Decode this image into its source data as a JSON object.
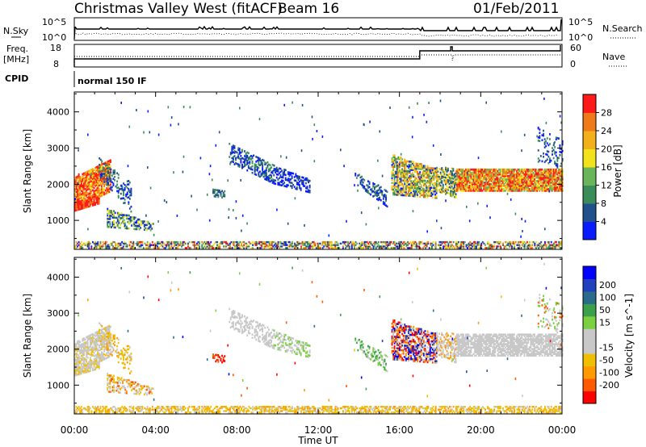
{
  "header": {
    "title": "Christmas Valley West (fitACF)",
    "beam": "Beam 16",
    "date": "01/Feb/2011"
  },
  "strip_labels": {
    "nsky": "N.Sky",
    "nsky_hi": "10^5",
    "nsky_lo": "10^0",
    "nsearch": "N.Search",
    "nsearch_hi": "10^5",
    "nsearch_lo": "10^0",
    "freq_top": "Freq.",
    "freq_unit": "[MHz]",
    "freq_hi": "18",
    "freq_lo": "8",
    "nave": "Nave",
    "nave_hi": "60",
    "nave_lo": "0",
    "cpid": "CPID",
    "mode": "normal 150 IF"
  },
  "colors": {
    "power": [
      "#0a1cff",
      "#22508a",
      "#3c8c5a",
      "#6ab45a",
      "#f2e21a",
      "#f2b01a",
      "#f07a1a",
      "#ff1a1a"
    ],
    "velocity": [
      "#ff0000",
      "#ff5a00",
      "#ff9a00",
      "#f0c000",
      "#c8c8c8",
      "#c8c8c8",
      "#7ad040",
      "#3aa04a",
      "#2a6a8a",
      "#2040c0",
      "#0000ff"
    ]
  },
  "chart_data": [
    {
      "type": "heatmap",
      "name": "power-panel",
      "ylabel": "Slant Range [km]",
      "yticks": [
        "1000",
        "2000",
        "3000",
        "4000"
      ],
      "ylim": [
        200,
        4550
      ],
      "xlim": [
        0,
        24
      ],
      "colorbar_label": "Power [dB]",
      "colorbar_ticks": [
        "4",
        "8",
        "12",
        "16",
        "20",
        "24",
        "28"
      ],
      "colorbar_range": [
        0,
        32
      ]
    },
    {
      "type": "heatmap",
      "name": "velocity-panel",
      "ylabel": "Slant Range [km]",
      "yticks": [
        "1000",
        "2000",
        "3000",
        "4000"
      ],
      "ylim": [
        200,
        4550
      ],
      "xlim": [
        0,
        24
      ],
      "colorbar_label": "Velocity [m s^-1]",
      "colorbar_ticks": [
        "-200",
        "-100",
        "-50",
        "-15",
        "15",
        "50",
        "100",
        "200"
      ]
    }
  ],
  "xaxis": {
    "label": "Time UT",
    "ticks": [
      "00:00",
      "04:00",
      "08:00",
      "12:00",
      "16:00",
      "20:00",
      "00:00"
    ]
  }
}
